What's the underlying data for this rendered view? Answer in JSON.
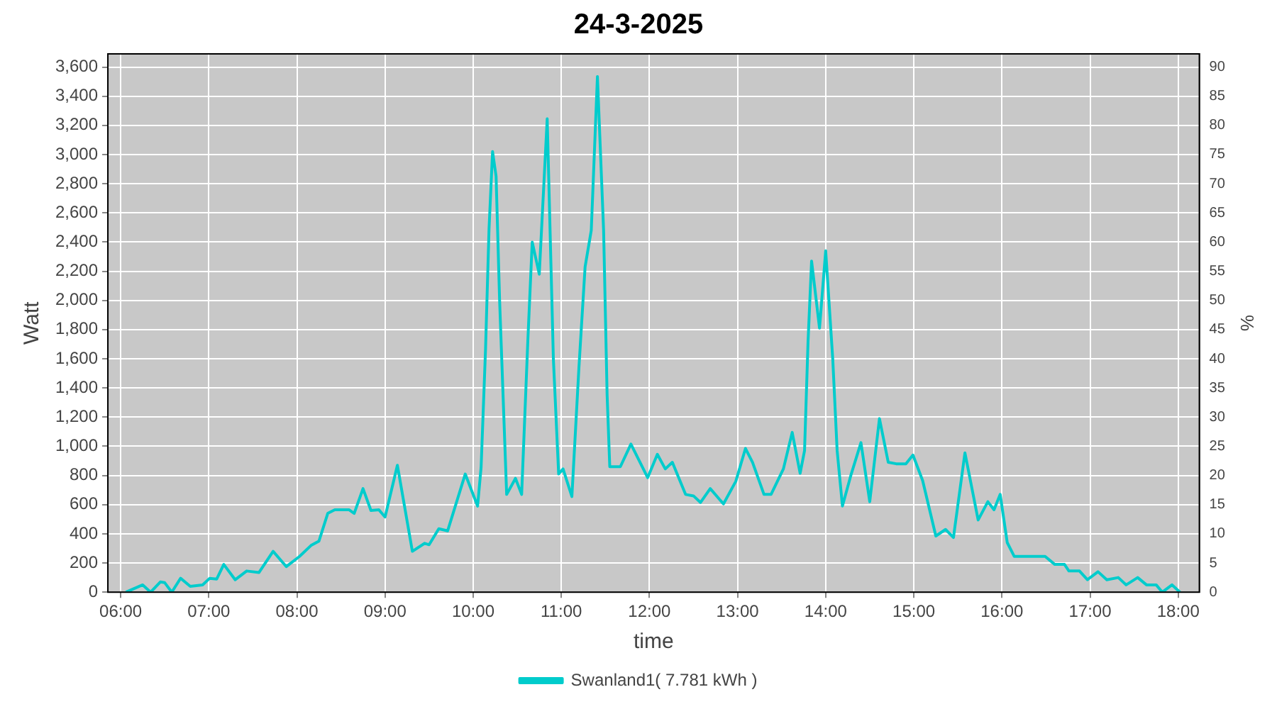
{
  "chart_data": {
    "type": "line",
    "title": "24-3-2025",
    "xlabel": "time",
    "ylabel": "Watt",
    "y2label": "%",
    "xlim": [
      5.855,
      18.24
    ],
    "xticks": [
      {
        "value": 6,
        "label": "06:00"
      },
      {
        "value": 7,
        "label": "07:00"
      },
      {
        "value": 8,
        "label": "08:00"
      },
      {
        "value": 9,
        "label": "09:00"
      },
      {
        "value": 10,
        "label": "10:00"
      },
      {
        "value": 11,
        "label": "11:00"
      },
      {
        "value": 12,
        "label": "12:00"
      },
      {
        "value": 13,
        "label": "13:00"
      },
      {
        "value": 14,
        "label": "14:00"
      },
      {
        "value": 15,
        "label": "15:00"
      },
      {
        "value": 16,
        "label": "16:00"
      },
      {
        "value": 17,
        "label": "17:00"
      },
      {
        "value": 18,
        "label": "18:00"
      }
    ],
    "ylim": [
      0,
      3690
    ],
    "yticks": [
      0,
      200,
      400,
      600,
      800,
      {
        "value": 1000,
        "label": "1,000"
      },
      {
        "value": 1200,
        "label": "1,200"
      },
      {
        "value": 1400,
        "label": "1,400"
      },
      {
        "value": 1600,
        "label": "1,600"
      },
      {
        "value": 1800,
        "label": "1,800"
      },
      {
        "value": 2000,
        "label": "2,000"
      },
      {
        "value": 2200,
        "label": "2,200"
      },
      {
        "value": 2400,
        "label": "2,400"
      },
      {
        "value": 2600,
        "label": "2,600"
      },
      {
        "value": 2800,
        "label": "2,800"
      },
      {
        "value": 3000,
        "label": "3,000"
      },
      {
        "value": 3200,
        "label": "3,200"
      },
      {
        "value": 3400,
        "label": "3,400"
      },
      {
        "value": 3600,
        "label": "3,600"
      }
    ],
    "y2lim": [
      0,
      92.25
    ],
    "y2ticks": [
      0,
      5,
      10,
      15,
      20,
      25,
      30,
      35,
      40,
      45,
      50,
      55,
      60,
      65,
      70,
      75,
      80,
      85,
      90
    ],
    "grid": true,
    "legend": "bottom",
    "marker": "none",
    "line_style": "solid",
    "series": [
      {
        "name": "Swanland1( 7.781 kWh )",
        "color": "#00cccc",
        "x": [
          6.06,
          6.25,
          6.34,
          6.45,
          6.5,
          6.58,
          6.68,
          6.79,
          6.93,
          7.01,
          7.09,
          7.17,
          7.3,
          7.43,
          7.57,
          7.73,
          7.88,
          8.03,
          8.16,
          8.25,
          8.35,
          8.43,
          8.59,
          8.65,
          8.75,
          8.84,
          8.93,
          9.0,
          9.14,
          9.31,
          9.45,
          9.5,
          9.61,
          9.71,
          9.91,
          10.05,
          10.09,
          10.14,
          10.18,
          10.22,
          10.26,
          10.3,
          10.38,
          10.48,
          10.55,
          10.62,
          10.67,
          10.75,
          10.84,
          10.91,
          10.97,
          11.02,
          11.12,
          11.2,
          11.27,
          11.34,
          11.41,
          11.48,
          11.52,
          11.55,
          11.67,
          11.79,
          11.98,
          12.09,
          12.18,
          12.26,
          12.41,
          12.5,
          12.58,
          12.69,
          12.84,
          12.98,
          13.09,
          13.17,
          13.3,
          13.38,
          13.52,
          13.62,
          13.71,
          13.76,
          13.8,
          13.84,
          13.93,
          14.0,
          14.08,
          14.13,
          14.19,
          14.29,
          14.4,
          14.5,
          14.61,
          14.71,
          14.8,
          14.91,
          14.99,
          15.1,
          15.25,
          15.36,
          15.45,
          15.58,
          15.73,
          15.84,
          15.91,
          15.98,
          16.06,
          16.14,
          16.49,
          16.6,
          16.71,
          16.76,
          16.88,
          16.97,
          17.09,
          17.19,
          17.32,
          17.41,
          17.54,
          17.64,
          17.75,
          17.82,
          17.93,
          18.02
        ],
        "values": [
          0,
          50,
          0,
          70,
          65,
          0,
          95,
          40,
          50,
          95,
          90,
          190,
          85,
          145,
          135,
          280,
          175,
          245,
          320,
          350,
          540,
          565,
          565,
          540,
          710,
          560,
          565,
          515,
          870,
          280,
          335,
          325,
          435,
          420,
          810,
          590,
          855,
          1660,
          2490,
          3020,
          2850,
          2000,
          670,
          780,
          670,
          1720,
          2400,
          2180,
          3245,
          1600,
          810,
          845,
          655,
          1540,
          2230,
          2480,
          3535,
          2480,
          1350,
          860,
          860,
          1015,
          785,
          945,
          845,
          890,
          670,
          660,
          615,
          710,
          605,
          760,
          985,
          890,
          670,
          670,
          845,
          1095,
          815,
          970,
          1720,
          2270,
          1810,
          2340,
          1600,
          970,
          590,
          810,
          1025,
          620,
          1190,
          890,
          880,
          880,
          940,
          765,
          385,
          430,
          375,
          955,
          495,
          620,
          565,
          670,
          340,
          245,
          245,
          190,
          190,
          145,
          145,
          85,
          140,
          85,
          100,
          50,
          100,
          50,
          50,
          0,
          50,
          0
        ]
      }
    ]
  }
}
